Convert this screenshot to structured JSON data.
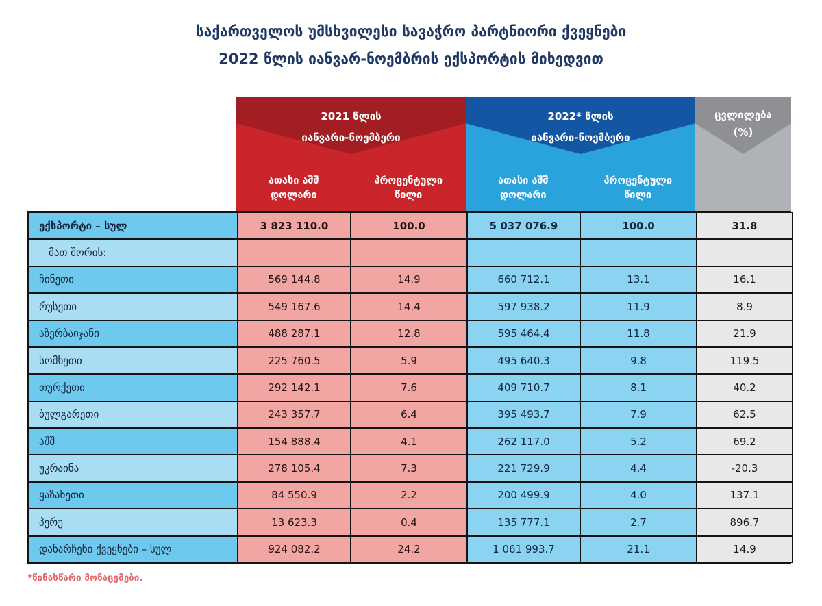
{
  "title": {
    "line1": "საქართველოს უმსხვილესი სავაჭრო პარტნიორი ქვეყნები",
    "line2": "2022 წლის იანვარ-ნოემბრის ექსპორტის მიხედვით"
  },
  "header": {
    "groups": [
      {
        "year_line1": "2021 წლის",
        "year_line2": "იანვარი-ნოემბერი",
        "col1": "ათასი აშშ დოლარი",
        "col2": "პროცენტული წილი"
      },
      {
        "year_line1": "2022* წლის",
        "year_line2": "იანვარი-ნოემბერი",
        "col1": "ათასი აშშ დოლარი",
        "col2": "პროცენტული წილი"
      }
    ],
    "change": {
      "label": "ცვლილება (%)"
    }
  },
  "table": {
    "rows": [
      {
        "label": "ექსპორტი – სულ",
        "usd2021": "3 823 110.0",
        "pct2021": "100.0",
        "usd2022": "5 037 076.9",
        "pct2022": "100.0",
        "change": "31.8",
        "bold": true,
        "indent": false
      },
      {
        "label": "მათ შორის:",
        "usd2021": "",
        "pct2021": "",
        "usd2022": "",
        "pct2022": "",
        "change": "",
        "bold": false,
        "indent": true
      },
      {
        "label": "ჩინეთი",
        "usd2021": "569 144.8",
        "pct2021": "14.9",
        "usd2022": "660 712.1",
        "pct2022": "13.1",
        "change": "16.1",
        "bold": false,
        "indent": false
      },
      {
        "label": "რუსეთი",
        "usd2021": "549 167.6",
        "pct2021": "14.4",
        "usd2022": "597 938.2",
        "pct2022": "11.9",
        "change": "8.9",
        "bold": false,
        "indent": false
      },
      {
        "label": "აზერბაიჯანი",
        "usd2021": "488 287.1",
        "pct2021": "12.8",
        "usd2022": "595 464.4",
        "pct2022": "11.8",
        "change": "21.9",
        "bold": false,
        "indent": false
      },
      {
        "label": "სომხეთი",
        "usd2021": "225 760.5",
        "pct2021": "5.9",
        "usd2022": "495 640.3",
        "pct2022": "9.8",
        "change": "119.5",
        "bold": false,
        "indent": false
      },
      {
        "label": "თურქეთი",
        "usd2021": "292 142.1",
        "pct2021": "7.6",
        "usd2022": "409 710.7",
        "pct2022": "8.1",
        "change": "40.2",
        "bold": false,
        "indent": false
      },
      {
        "label": "ბულგარეთი",
        "usd2021": "243 357.7",
        "pct2021": "6.4",
        "usd2022": "395 493.7",
        "pct2022": "7.9",
        "change": "62.5",
        "bold": false,
        "indent": false
      },
      {
        "label": "აშშ",
        "usd2021": "154 888.4",
        "pct2021": "4.1",
        "usd2022": "262 117.0",
        "pct2022": "5.2",
        "change": "69.2",
        "bold": false,
        "indent": false
      },
      {
        "label": "უკრაინა",
        "usd2021": "278 105.4",
        "pct2021": "7.3",
        "usd2022": "221 729.9",
        "pct2022": "4.4",
        "change": "-20.3",
        "bold": false,
        "indent": false
      },
      {
        "label": "ყაზახეთი",
        "usd2021": "84 550.9",
        "pct2021": "2.2",
        "usd2022": "200 499.9",
        "pct2022": "4.0",
        "change": "137.1",
        "bold": false,
        "indent": false
      },
      {
        "label": "პერუ",
        "usd2021": "13 623.3",
        "pct2021": "0.4",
        "usd2022": "135 777.1",
        "pct2022": "2.7",
        "change": "896.7",
        "bold": false,
        "indent": false
      },
      {
        "label": "დანარჩენი ქვეყნები – სულ",
        "usd2021": "924 082.2",
        "pct2021": "24.2",
        "usd2022": "1 061 993.7",
        "pct2022": "21.1",
        "change": "14.9",
        "bold": false,
        "indent": false
      }
    ]
  },
  "footnote": "*წინასწარი მონაცემები.",
  "colors": {
    "title_text": "#1F3864",
    "red_dark": "#A21E23",
    "red_light": "#C9252B",
    "pink_cell": "#F2A6A4",
    "blue_dark": "#1356A3",
    "blue_light": "#2AA2DC",
    "blue_cell": "#8AD3F1",
    "country_row_dark": "#6EC9EE",
    "country_row_light": "#A9DDF3",
    "gray_dark": "#8E9093",
    "gray_light": "#AFB2B6",
    "gray_cell": "#E8E8E8",
    "border": "#141414",
    "footnote_text": "#E4696B"
  }
}
